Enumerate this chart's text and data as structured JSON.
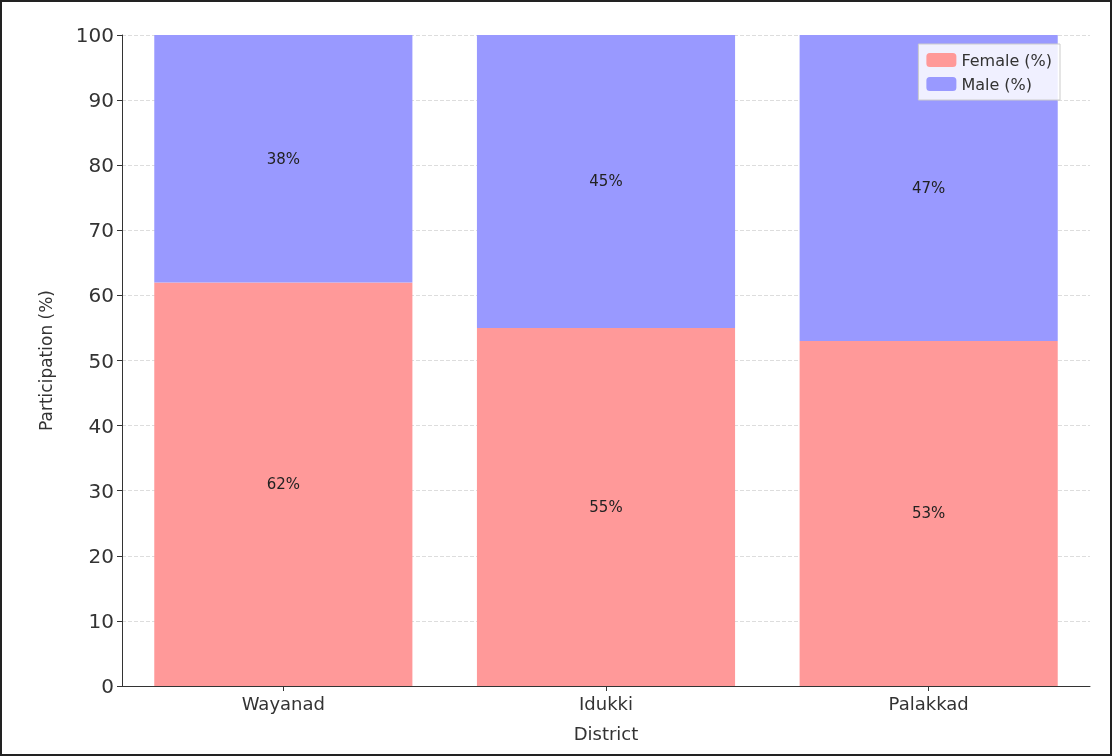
{
  "chart_data": {
    "type": "bar",
    "stacked": true,
    "xlabel": "District",
    "ylabel": "Participation (%)",
    "categories": [
      "Wayanad",
      "Idukki",
      "Palakkad"
    ],
    "series": [
      {
        "name": "Female (%)",
        "color": "#ff9999",
        "values": [
          62,
          55,
          53
        ],
        "value_labels": [
          "62%",
          "55%",
          "53%"
        ]
      },
      {
        "name": "Male (%)",
        "color": "#9999ff",
        "values": [
          38,
          45,
          47
        ],
        "value_labels": [
          "38%",
          "45%",
          "47%"
        ]
      }
    ],
    "ylim": [
      0,
      100
    ],
    "yticks": [
      0,
      10,
      20,
      30,
      40,
      50,
      60,
      70,
      80,
      90,
      100
    ],
    "grid": "y",
    "legend": "top right"
  }
}
